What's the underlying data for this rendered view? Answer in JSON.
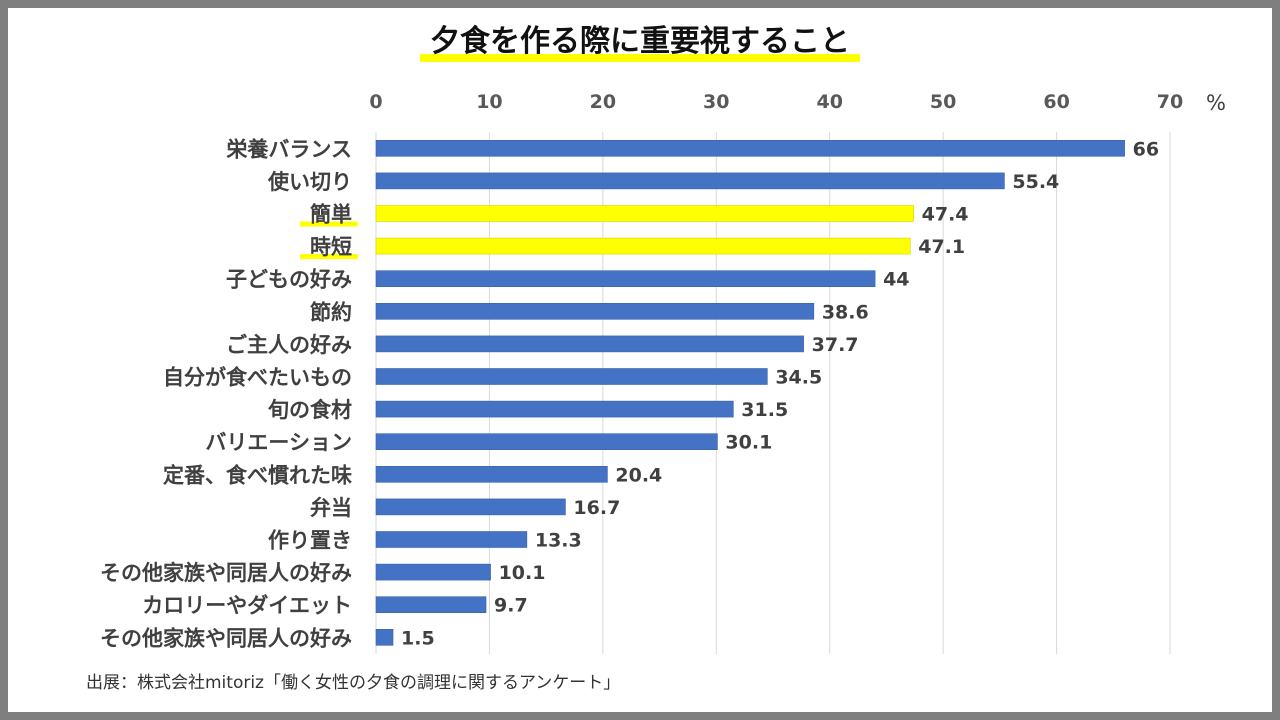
{
  "chart_data": {
    "type": "bar",
    "orientation": "horizontal",
    "title": "夕食を作る際に重要視すること",
    "unit": "%",
    "xlim": [
      0,
      70
    ],
    "ticks": [
      0,
      10,
      20,
      30,
      40,
      50,
      60,
      70
    ],
    "axis_position": "top",
    "grid": true,
    "categories": [
      "栄養バランス",
      "使い切り",
      "簡単",
      "時短",
      "子どもの好み",
      "節約",
      "ご主人の好み",
      "自分が食べたいもの",
      "旬の食材",
      "バリエーション",
      "定番、食べ慣れた味",
      "弁当",
      "作り置き",
      "その他家族や同居人の好み",
      "カロリーやダイエット",
      "その他家族や同居人の好み"
    ],
    "values": [
      66,
      55.4,
      47.4,
      47.1,
      44,
      38.6,
      37.7,
      34.5,
      31.5,
      30.1,
      20.4,
      16.7,
      13.3,
      10.1,
      9.7,
      1.5
    ],
    "highlighted": [
      false,
      false,
      true,
      true,
      false,
      false,
      false,
      false,
      false,
      false,
      false,
      false,
      false,
      false,
      false,
      false
    ],
    "colors": {
      "bar": "#4472c4",
      "highlight": "#ffff00",
      "grid": "#d9d9d9"
    }
  },
  "source": "出展：株式会社mitoriz「働く女性の夕食の調理に関するアンケート」"
}
